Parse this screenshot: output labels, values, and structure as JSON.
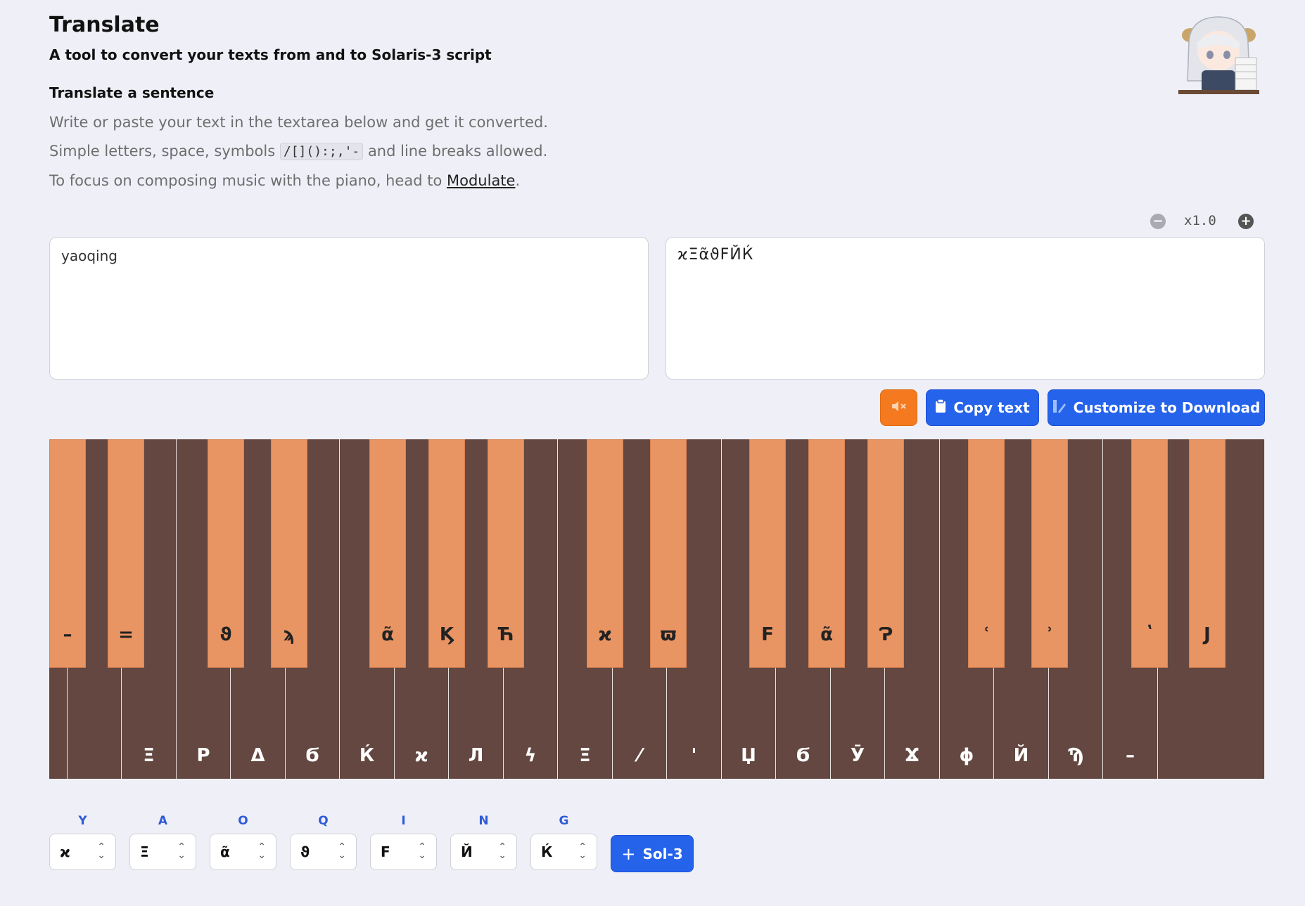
{
  "header": {
    "title": "Translate",
    "subtitle": "A tool to convert your texts from and to Solaris-3 script",
    "section_title": "Translate a sentence",
    "line1": "Write or paste your text in the textarea below and get it converted.",
    "line2_prefix": "Simple letters, space, symbols",
    "line2_code": "/[]():;,'-",
    "line2_suffix": "and line breaks allowed.",
    "line3_prefix": "To focus on composing music with the piano, head to",
    "line3_link": "Modulate",
    "line3_suffix": "."
  },
  "zoom": {
    "label": "x1.0",
    "minus": "−",
    "plus": "+"
  },
  "input": {
    "value": "yaoqing"
  },
  "output": {
    "value": "ϰΞᾶϑϜЙЌ"
  },
  "actions": {
    "copy_label": "Copy text",
    "customize_label": "Customize to Download"
  },
  "piano": {
    "white_glyphs": [
      "",
      "",
      "Ξ",
      "Ρ",
      "Δ",
      "Ϭ",
      "Ќ",
      "ϰ",
      "Л",
      "ϟ",
      "Ξ",
      "⁄",
      "'",
      "Џ",
      "Ϭ",
      "Ӯ",
      "Ϫ",
      "ϕ",
      "Й",
      "Ϡ",
      "–",
      ""
    ],
    "black_glyphs": [
      "–",
      "=",
      "ϑ",
      "ϡ",
      "ᾶ",
      "Ϗ",
      "Ћ",
      "ϰ",
      "ϖ",
      "Ϝ",
      "ᾶ",
      "Ɂ",
      "ʿ",
      "ʾ",
      "ʽ",
      "Ϳ"
    ]
  },
  "letters": [
    {
      "label": "Y",
      "glyph": "ϰ"
    },
    {
      "label": "A",
      "glyph": "Ξ"
    },
    {
      "label": "O",
      "glyph": "ᾶ"
    },
    {
      "label": "Q",
      "glyph": "ϑ"
    },
    {
      "label": "I",
      "glyph": "Ϝ"
    },
    {
      "label": "N",
      "glyph": "Й"
    },
    {
      "label": "G",
      "glyph": "Ќ"
    }
  ],
  "sol_button": {
    "plus": "+",
    "label": "Sol-3"
  },
  "colors": {
    "accent": "#2563eb",
    "mute": "#f57a1f",
    "white_key": "#634740",
    "black_key": "#e89463",
    "background": "#eff0f7"
  }
}
